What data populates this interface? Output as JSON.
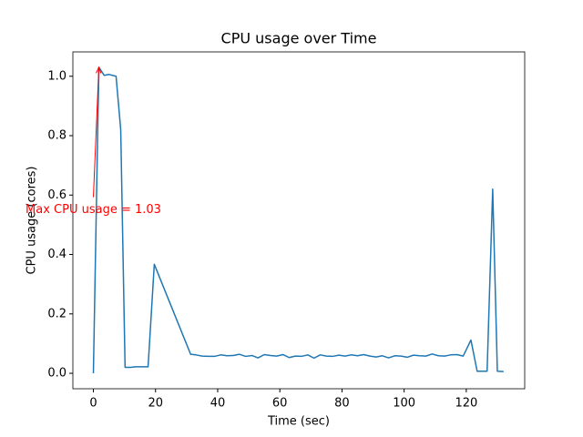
{
  "chart_data": {
    "type": "line",
    "title": "CPU usage over Time",
    "x_label": "Time (sec)",
    "y_label": "CPU usage (cores)",
    "x": [
      0,
      1.76,
      3.5,
      5,
      7.3,
      8.8,
      10.2,
      12,
      13.5,
      15.5,
      17.6,
      19.6,
      31.3,
      33,
      35,
      37,
      39,
      41,
      43,
      45,
      47,
      49,
      51,
      53,
      55,
      57,
      59,
      61,
      63,
      65,
      67,
      69,
      71,
      73,
      75,
      77,
      79,
      81,
      83,
      85,
      87,
      89,
      91,
      93,
      95,
      97,
      99,
      101,
      103,
      105,
      107,
      109,
      111,
      113,
      115,
      117,
      119,
      121.5,
      123.5,
      126.7,
      128.5,
      130,
      132
    ],
    "series": [
      {
        "name": "CPU usage",
        "color": "#1f77b4",
        "values": [
          0,
          1.03,
          1.003,
          1.006,
          1.0,
          0.82,
          0.02,
          0.02,
          0.022,
          0.022,
          0.022,
          0.367,
          0.064,
          0.062,
          0.058,
          0.057,
          0.057,
          0.062,
          0.059,
          0.06,
          0.064,
          0.057,
          0.06,
          0.052,
          0.063,
          0.06,
          0.058,
          0.063,
          0.053,
          0.058,
          0.057,
          0.062,
          0.051,
          0.062,
          0.058,
          0.057,
          0.061,
          0.058,
          0.062,
          0.059,
          0.063,
          0.058,
          0.055,
          0.059,
          0.052,
          0.059,
          0.058,
          0.054,
          0.061,
          0.059,
          0.058,
          0.065,
          0.059,
          0.058,
          0.062,
          0.063,
          0.058,
          0.112,
          0.007,
          0.007,
          0.62,
          0.007,
          0.006
        ]
      }
    ],
    "xlim": [
      -6.6,
      138.8
    ],
    "ylim": [
      -0.052,
      1.082
    ],
    "xticks": [
      0,
      20,
      40,
      60,
      80,
      100,
      120
    ],
    "yticks": [
      {
        "value": 0,
        "label": "0.0"
      },
      0.2,
      0.4,
      0.6,
      0.8,
      {
        "value": 1,
        "label": "1.0"
      }
    ],
    "annotation": {
      "text": "Max CPU usage = 1.03",
      "color": "#ff0000",
      "xy": [
        1.76,
        1.03
      ],
      "xytext": [
        0,
        0.55
      ]
    }
  }
}
